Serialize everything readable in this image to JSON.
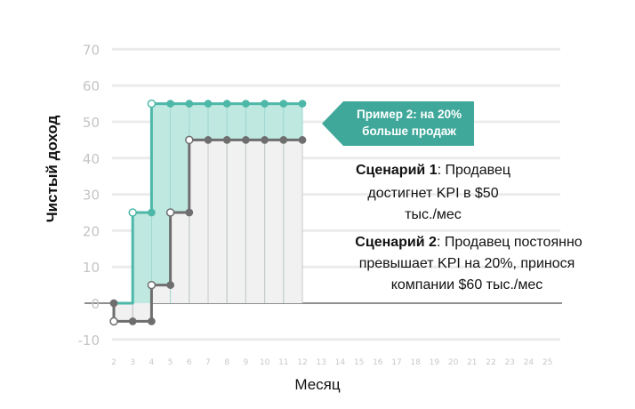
{
  "chart_data": {
    "type": "line",
    "title": "",
    "xlabel": "Месяц",
    "ylabel": "Чистый доход",
    "ylim": [
      -10,
      70
    ],
    "yticks": [
      -10,
      0,
      10,
      20,
      30,
      40,
      50,
      60,
      70
    ],
    "xticks": [
      2,
      3,
      4,
      5,
      6,
      7,
      8,
      9,
      10,
      11,
      12,
      13,
      14,
      15,
      16,
      17,
      18,
      19,
      20,
      21,
      22,
      23,
      24,
      25
    ],
    "grid": "horizontal",
    "series": [
      {
        "style": "teal step line with filled area",
        "color": "#4db8a8",
        "fill": "#bfe8e1",
        "points": [
          [
            2,
            0
          ],
          [
            3,
            0
          ],
          [
            3,
            25
          ],
          [
            4,
            25
          ],
          [
            4,
            55
          ],
          [
            5,
            55
          ],
          [
            6,
            55
          ],
          [
            7,
            55
          ],
          [
            8,
            55
          ],
          [
            9,
            55
          ],
          [
            10,
            55
          ],
          [
            11,
            55
          ],
          [
            12,
            55
          ]
        ],
        "markers": [
          {
            "x": 3,
            "y": 25,
            "open": true
          },
          {
            "x": 4,
            "y": 25,
            "open": false
          },
          {
            "x": 4,
            "y": 55,
            "open": true
          },
          {
            "x": 5,
            "y": 55
          },
          {
            "x": 6,
            "y": 55
          },
          {
            "x": 7,
            "y": 55
          },
          {
            "x": 8,
            "y": 55
          },
          {
            "x": 9,
            "y": 55
          },
          {
            "x": 10,
            "y": 55
          },
          {
            "x": 11,
            "y": 55
          },
          {
            "x": 12,
            "y": 55
          }
        ]
      },
      {
        "style": "gray step line with light fill",
        "color": "#6e6e6e",
        "fill": "#f1f1f1",
        "points": [
          [
            2,
            0
          ],
          [
            2,
            -5
          ],
          [
            3,
            -5
          ],
          [
            4,
            -5
          ],
          [
            4,
            5
          ],
          [
            5,
            5
          ],
          [
            5,
            25
          ],
          [
            6,
            25
          ],
          [
            6,
            45
          ],
          [
            7,
            45
          ],
          [
            8,
            45
          ],
          [
            9,
            45
          ],
          [
            10,
            45
          ],
          [
            11,
            45
          ],
          [
            12,
            45
          ]
        ],
        "markers": [
          {
            "x": 2,
            "y": 0,
            "open": false
          },
          {
            "x": 2,
            "y": -5,
            "open": true
          },
          {
            "x": 3,
            "y": -5,
            "open": false
          },
          {
            "x": 4,
            "y": -5,
            "open": false
          },
          {
            "x": 4,
            "y": 5,
            "open": true
          },
          {
            "x": 5,
            "y": 5,
            "open": false
          },
          {
            "x": 5,
            "y": 25,
            "open": true
          },
          {
            "x": 6,
            "y": 25,
            "open": false
          },
          {
            "x": 6,
            "y": 45,
            "open": true
          },
          {
            "x": 7,
            "y": 45
          },
          {
            "x": 8,
            "y": 45
          },
          {
            "x": 9,
            "y": 45
          },
          {
            "x": 10,
            "y": 45
          },
          {
            "x": 11,
            "y": 45
          },
          {
            "x": 12,
            "y": 45
          }
        ]
      }
    ],
    "callout": {
      "line1": "Пример 2: на 20%",
      "line2": "больше продаж",
      "color": "#3fa89a"
    },
    "annotations": {
      "scenario1": {
        "bold": "Сценарий 1",
        "lines": [
          ": Продавец",
          "достигнет KPI в $50",
          "тыс./мес"
        ]
      },
      "scenario2": {
        "bold": "Сценарий 2",
        "lines": [
          ": Продавец постоянно",
          "превышает KPI на 20%, принося",
          "компании $60 тыс./мес"
        ]
      }
    }
  }
}
